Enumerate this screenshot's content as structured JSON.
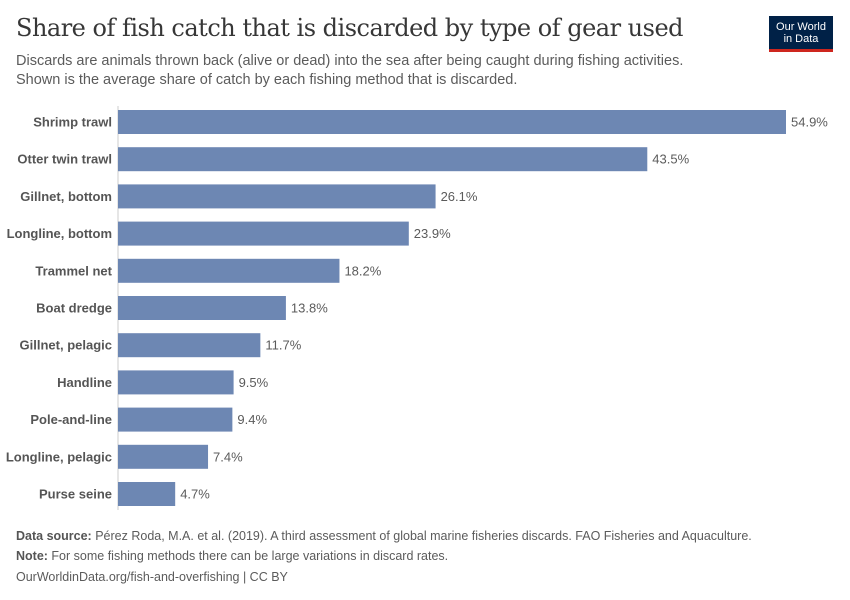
{
  "header": {
    "title": "Share of fish catch that is discarded by type of gear used",
    "subtitle_line1": "Discards are animals thrown back (alive or dead) into the sea after being caught during fishing activities.",
    "subtitle_line2": "Shown is the average share of catch by each fishing method that is discarded.",
    "logo_line1": "Our World",
    "logo_line2": "in Data"
  },
  "chart_data": {
    "type": "bar",
    "orientation": "horizontal",
    "unit": "%",
    "bar_color": "#6d87b3",
    "categories": [
      "Shrimp trawl",
      "Otter twin trawl",
      "Gillnet, bottom",
      "Longline, bottom",
      "Trammel net",
      "Boat dredge",
      "Gillnet, pelagic",
      "Handline",
      "Pole-and-line",
      "Longline, pelagic",
      "Purse seine"
    ],
    "values": [
      54.9,
      43.5,
      26.1,
      23.9,
      18.2,
      13.8,
      11.7,
      9.5,
      9.4,
      7.4,
      4.7
    ],
    "labels": [
      "54.9%",
      "43.5%",
      "26.1%",
      "23.9%",
      "18.2%",
      "13.8%",
      "11.7%",
      "9.5%",
      "9.4%",
      "7.4%",
      "4.7%"
    ]
  },
  "footer": {
    "source_label": "Data source:",
    "source_text": " Pérez Roda, M.A. et al. (2019). A third assessment of global marine fisheries discards. FAO Fisheries and Aquaculture.",
    "note_label": "Note:",
    "note_text": " For some fishing methods there can be large variations in discard rates.",
    "url": "OurWorldinData.org/fish-and-overfishing | CC BY"
  }
}
